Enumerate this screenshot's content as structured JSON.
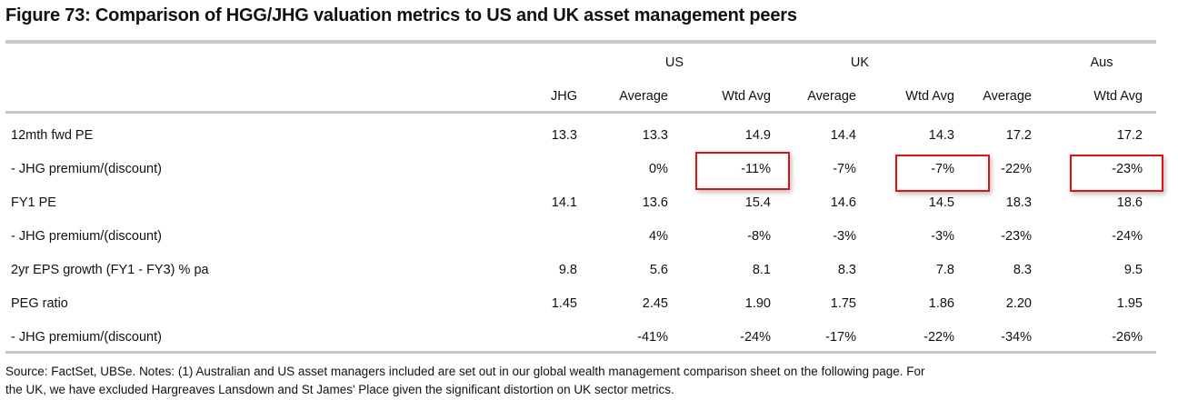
{
  "title": "Figure 73: Comparison of HGG/JHG valuation metrics to US and UK asset management peers",
  "groups": [
    "US",
    "UK",
    "Aus"
  ],
  "columns": [
    "JHG",
    "Average",
    "Wtd Avg",
    "Average",
    "Wtd Avg",
    "Average",
    "Wtd Avg"
  ],
  "rows": [
    {
      "label": "12mth fwd PE",
      "values": [
        "13.3",
        "13.3",
        "14.9",
        "14.4",
        "14.3",
        "17.2",
        "17.2"
      ]
    },
    {
      "label": " - JHG premium/(discount)",
      "values": [
        "",
        "0%",
        "-11%",
        "-7%",
        "-7%",
        "-22%",
        "-23%"
      ]
    },
    {
      "label": "FY1 PE",
      "values": [
        "14.1",
        "13.6",
        "15.4",
        "14.6",
        "14.5",
        "18.3",
        "18.6"
      ]
    },
    {
      "label": " - JHG premium/(discount)",
      "values": [
        "",
        "4%",
        "-8%",
        "-3%",
        "-3%",
        "-23%",
        "-24%"
      ]
    },
    {
      "label": "2yr EPS growth (FY1 - FY3) % pa",
      "values": [
        "9.8",
        "5.6",
        "8.1",
        "8.3",
        "7.8",
        "8.3",
        "9.5"
      ]
    },
    {
      "label": "PEG ratio",
      "values": [
        "1.45",
        "2.45",
        "1.90",
        "1.75",
        "1.86",
        "2.20",
        "1.95"
      ]
    },
    {
      "label": " - JHG premium/(discount)",
      "values": [
        "",
        "-41%",
        "-24%",
        "-17%",
        "-22%",
        "-34%",
        "-26%"
      ]
    }
  ],
  "highlight_color": "#e0101a",
  "source_lines": [
    "Source:  FactSet, UBSe. Notes: (1) Australian and US asset managers included are set out in our global wealth management comparison sheet on the following page. For",
    "the UK, we have excluded Hargreaves Lansdown and St James' Place given the significant distortion on UK sector metrics."
  ]
}
